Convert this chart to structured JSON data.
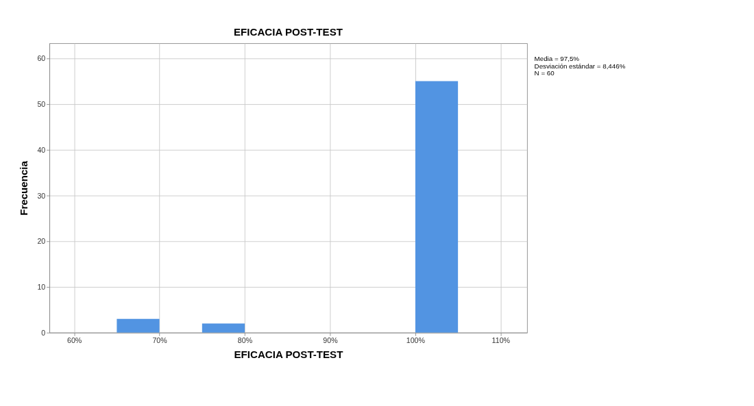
{
  "chart_data": {
    "type": "histogram",
    "title": "EFICACIA POST-TEST",
    "xlabel": "EFICACIA POST-TEST",
    "ylabel": "Frecuencia",
    "bins": [
      65,
      70,
      75,
      80,
      85,
      90,
      95,
      100,
      105
    ],
    "values": [
      3,
      0,
      2,
      0,
      0,
      0,
      0,
      55
    ],
    "color": "#5294e2",
    "xlim": [
      57.1,
      113.1
    ],
    "xticks": [
      {
        "value": 60,
        "label": "60%"
      },
      {
        "value": 70,
        "label": "70%"
      },
      {
        "value": 80,
        "label": "80%"
      },
      {
        "value": 90,
        "label": "90%"
      },
      {
        "value": 100,
        "label": "100%"
      },
      {
        "value": 110,
        "label": "110%"
      }
    ],
    "ylim": [
      0,
      63.3
    ],
    "yticks": [
      0,
      10,
      20,
      30,
      40,
      50,
      60
    ],
    "grid": true,
    "annotations": [
      "Media = 97,5%",
      "Desviación estándar = 8,446%",
      "N = 60"
    ]
  }
}
